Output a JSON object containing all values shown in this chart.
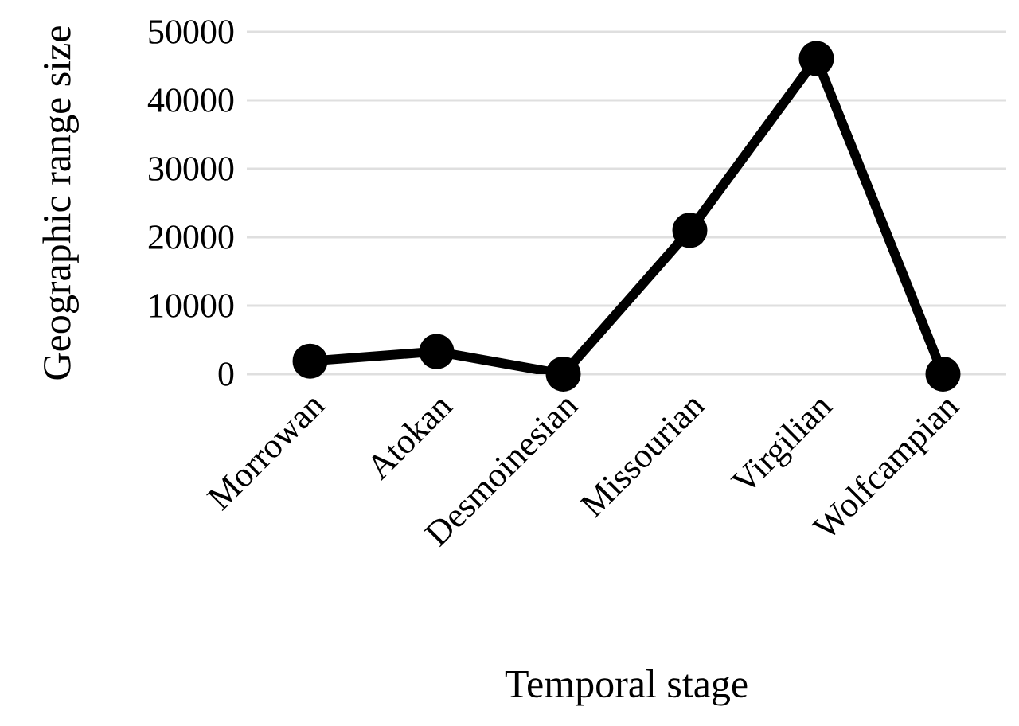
{
  "chart_data": {
    "type": "line",
    "xlabel": "Temporal stage",
    "ylabel": "Geographic range size",
    "categories": [
      "Morrowan",
      "Atokan",
      "Desmoinesian",
      "Missourian",
      "Virgilian",
      "Wolfcampian"
    ],
    "series": [
      {
        "color": "#000000",
        "values": [
          1900,
          3300,
          0,
          21000,
          46100,
          0
        ]
      }
    ],
    "ylim": [
      0,
      50000
    ],
    "yticks": [
      0,
      10000,
      20000,
      30000,
      40000,
      50000
    ],
    "grid": "y",
    "marker": "circle",
    "line_style": "solid"
  }
}
